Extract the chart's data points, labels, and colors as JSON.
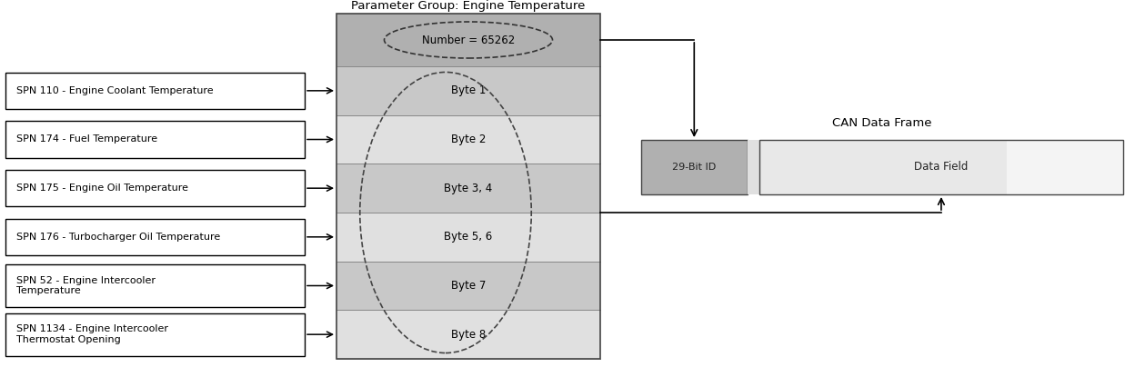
{
  "fig_width": 12.59,
  "fig_height": 4.04,
  "bg_color": "#ffffff",
  "spn_labels": [
    "SPN 110 - Engine Coolant Temperature",
    "SPN 174 - Fuel Temperature",
    "SPN 175 - Engine Oil Temperature",
    "SPN 176 - Turbocharger Oil Temperature",
    "SPN 52 - Engine Intercooler\nTemperature",
    "SPN 1134 - Engine Intercooler\nThermostat Opening"
  ],
  "byte_labels": [
    "Byte 1",
    "Byte 2",
    "Byte 3, 4",
    "Byte 5, 6",
    "Byte 7",
    "Byte 8"
  ],
  "pg_title": "Parameter Group: Engine Temperature",
  "pg_number_label": "Number = 65262",
  "can_title": "CAN Data Frame",
  "can_id_label": "29-Bit ID",
  "can_data_label": "Data Field",
  "pg_header_color": "#b0b0b0",
  "pg_row_colors": [
    "#c8c8c8",
    "#e0e0e0"
  ],
  "can_id_color": "#b0b0b0",
  "can_data_color_left": "#d0d0d0",
  "can_data_color_mid": "#e8e8e8",
  "can_data_color_right": "#f4f4f4",
  "spn_box_color": "#ffffff",
  "spn_box_edge": "#000000",
  "arrow_color": "#000000",
  "font_size": 8.5,
  "title_font_size": 9.5
}
